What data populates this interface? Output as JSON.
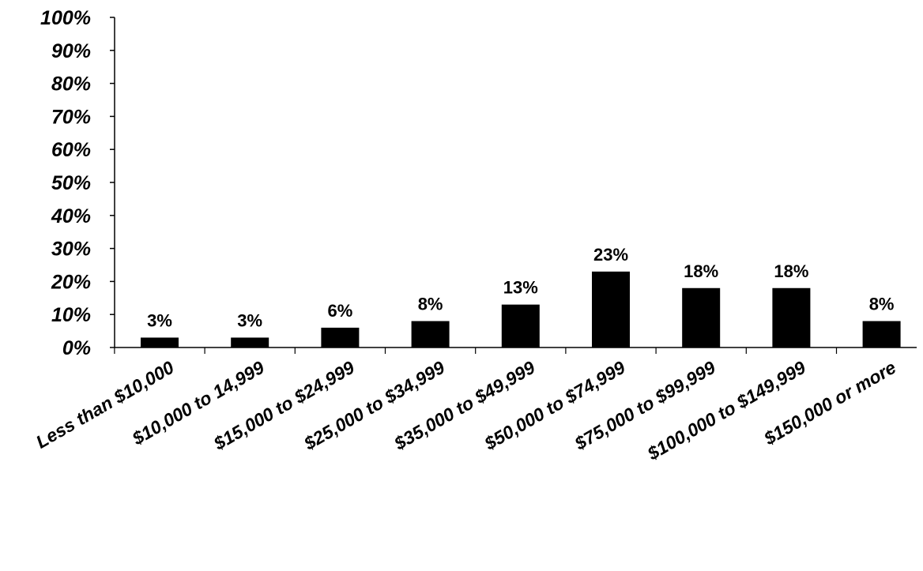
{
  "chart_data": {
    "type": "bar",
    "title": "",
    "xlabel": "",
    "ylabel": "",
    "categories": [
      "Less than $10,000",
      "$10,000 to 14,999",
      "$15,000 to $24,999",
      "$25,000 to $34,999",
      "$35,000 to $49,999",
      "$50,000 to $74,999",
      "$75,000 to $99,999",
      "$100,000 to $149,999",
      "$150,000 or more"
    ],
    "values": [
      3,
      3,
      6,
      8,
      13,
      23,
      18,
      18,
      8
    ],
    "data_labels": [
      "3%",
      "3%",
      "6%",
      "8%",
      "13%",
      "23%",
      "18%",
      "18%",
      "8%"
    ],
    "ylim": [
      0,
      100
    ],
    "yticks": [
      "0%",
      "10%",
      "20%",
      "30%",
      "40%",
      "50%",
      "60%",
      "70%",
      "80%",
      "90%",
      "100%"
    ],
    "grid": false,
    "legend": "none",
    "bar_color": "#000000"
  }
}
